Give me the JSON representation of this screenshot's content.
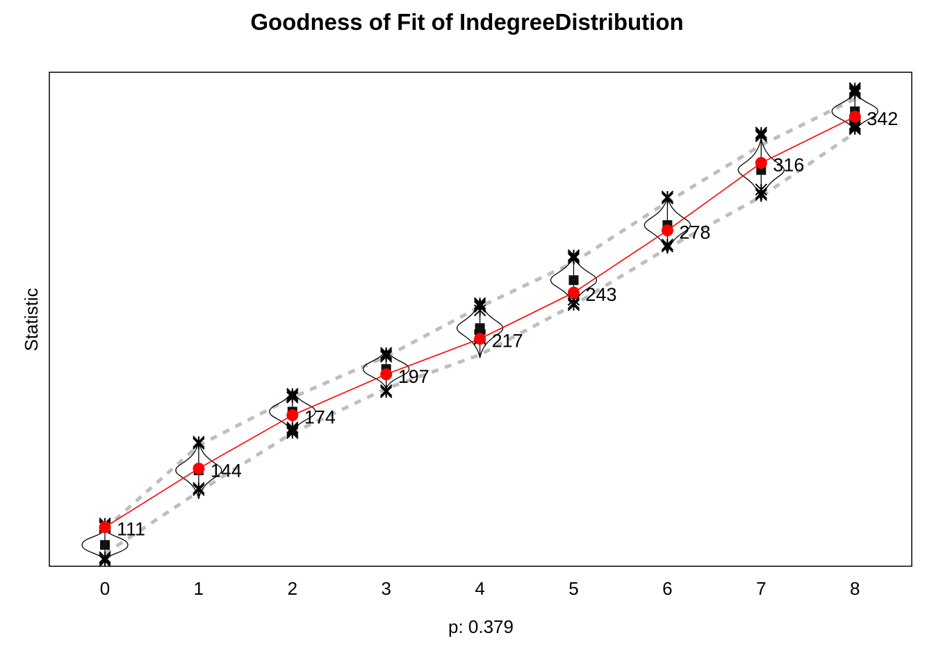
{
  "chart_data": {
    "type": "line",
    "title": "Goodness of Fit of IndegreeDistribution",
    "xlabel": "p: 0.379",
    "ylabel": "Statistic",
    "x": [
      0,
      1,
      2,
      3,
      4,
      5,
      6,
      7,
      8
    ],
    "x_tick_labels": [
      "0",
      "1",
      "2",
      "3",
      "4",
      "5",
      "6",
      "7",
      "8"
    ],
    "ylim": [
      89,
      367
    ],
    "y_ticks_shown": false,
    "grid": false,
    "legend": "none",
    "series": [
      {
        "role": "observed",
        "color": "#ff0000",
        "values": [
          111,
          144,
          174,
          197,
          217,
          243,
          278,
          316,
          342
        ],
        "labels": [
          "111",
          "144",
          "174",
          "197",
          "217",
          "243",
          "278",
          "316",
          "342"
        ]
      },
      {
        "role": "simulated median",
        "marker": "filled square",
        "color": "#000000",
        "values": [
          101,
          143,
          176,
          200,
          223,
          250,
          281,
          312,
          345
        ]
      },
      {
        "role": "simulated upper bound",
        "color": "#bebebe",
        "line": "dashed",
        "values": [
          110,
          157,
          184,
          207,
          235,
          260,
          294,
          326,
          352
        ]
      },
      {
        "role": "simulated lower bound",
        "color": "#bebebe",
        "line": "dashed",
        "values": [
          96,
          131,
          164,
          189,
          208,
          236,
          268,
          297,
          333
        ]
      }
    ],
    "outliers": [
      [
        113,
        112,
        111,
        94,
        93,
        92
      ],
      [
        159,
        158,
        133,
        132
      ],
      [
        186,
        185,
        184,
        167,
        166,
        165,
        164
      ],
      [
        209,
        208,
        207,
        188,
        187
      ],
      [
        237,
        236,
        235,
        233,
        219,
        218,
        217
      ],
      [
        264,
        263,
        262,
        239,
        237,
        236
      ],
      [
        297,
        296,
        270,
        269
      ],
      [
        333,
        332,
        331,
        301,
        299,
        298
      ],
      [
        358,
        357,
        356,
        355,
        338,
        337,
        336,
        335
      ]
    ],
    "violin_spread": [
      0.5,
      0.25,
      0.25,
      0.25,
      0.25,
      0.25,
      0.22,
      0.25,
      0.22
    ]
  }
}
